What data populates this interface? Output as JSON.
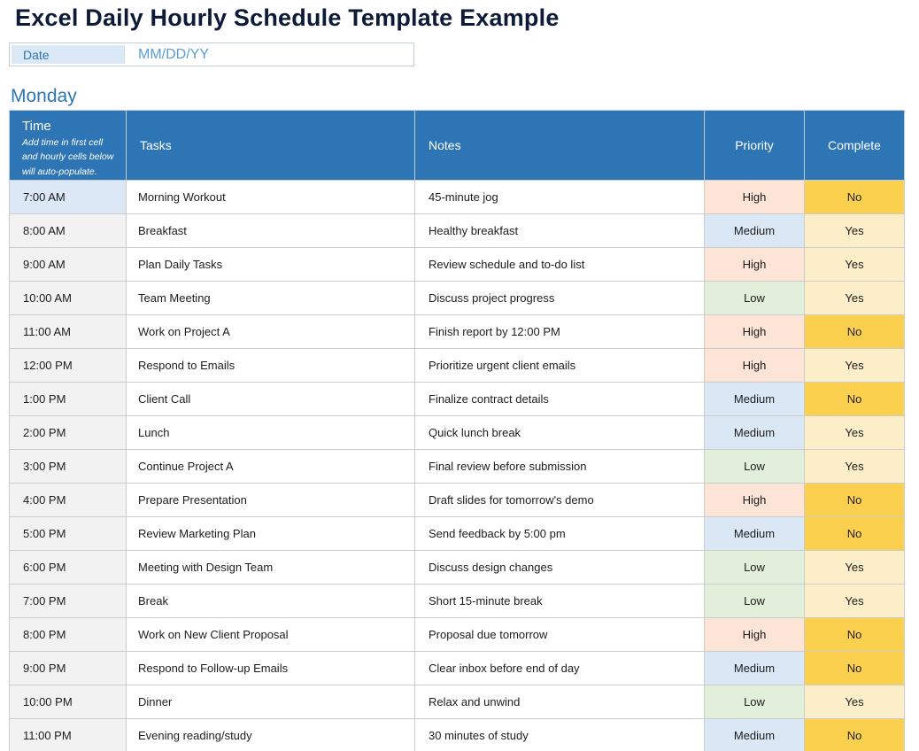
{
  "page": {
    "title": "Excel Daily Hourly Schedule Template Example"
  },
  "date_field": {
    "label": "Date",
    "placeholder": "MM/DD/YY"
  },
  "day_heading": "Monday",
  "table": {
    "headers": {
      "time": "Time",
      "time_note": "Add time in first cell and hourly cells below will auto-populate.",
      "tasks": "Tasks",
      "notes": "Notes",
      "priority": "Priority",
      "complete": "Complete"
    },
    "rows": [
      {
        "time": "7:00 AM",
        "task": "Morning Workout",
        "note": "45-minute jog",
        "priority": "High",
        "complete": "No"
      },
      {
        "time": "8:00 AM",
        "task": "Breakfast",
        "note": "Healthy breakfast",
        "priority": "Medium",
        "complete": "Yes"
      },
      {
        "time": "9:00 AM",
        "task": "Plan Daily Tasks",
        "note": "Review schedule and to-do list",
        "priority": "High",
        "complete": "Yes"
      },
      {
        "time": "10:00 AM",
        "task": "Team Meeting",
        "note": "Discuss project progress",
        "priority": "Low",
        "complete": "Yes"
      },
      {
        "time": "11:00 AM",
        "task": "Work on Project A",
        "note": "Finish report by 12:00 PM",
        "priority": "High",
        "complete": "No"
      },
      {
        "time": "12:00 PM",
        "task": "Respond to Emails",
        "note": "Prioritize urgent client emails",
        "priority": "High",
        "complete": "Yes"
      },
      {
        "time": "1:00 PM",
        "task": "Client Call",
        "note": "Finalize contract details",
        "priority": "Medium",
        "complete": "No"
      },
      {
        "time": "2:00 PM",
        "task": "Lunch",
        "note": "Quick lunch break",
        "priority": "Medium",
        "complete": "Yes"
      },
      {
        "time": "3:00 PM",
        "task": "Continue Project A",
        "note": "Final review before submission",
        "priority": "Low",
        "complete": "Yes"
      },
      {
        "time": "4:00 PM",
        "task": "Prepare Presentation",
        "note": "Draft slides for tomorrow's demo",
        "priority": "High",
        "complete": "No"
      },
      {
        "time": "5:00 PM",
        "task": "Review Marketing Plan",
        "note": "Send feedback by 5:00 pm",
        "priority": "Medium",
        "complete": "No"
      },
      {
        "time": "6:00 PM",
        "task": "Meeting with Design Team",
        "note": "Discuss design changes",
        "priority": "Low",
        "complete": "Yes"
      },
      {
        "time": "7:00 PM",
        "task": "Break",
        "note": "Short 15-minute break",
        "priority": "Low",
        "complete": "Yes"
      },
      {
        "time": "8:00 PM",
        "task": "Work on New Client Proposal",
        "note": "Proposal due tomorrow",
        "priority": "High",
        "complete": "No"
      },
      {
        "time": "9:00 PM",
        "task": "Respond to Follow-up Emails",
        "note": "Clear inbox before end of day",
        "priority": "Medium",
        "complete": "No"
      },
      {
        "time": "10:00 PM",
        "task": "Dinner",
        "note": "Relax and unwind",
        "priority": "Low",
        "complete": "Yes"
      },
      {
        "time": "11:00 PM",
        "task": "Evening reading/study",
        "note": "30 minutes of study",
        "priority": "Medium",
        "complete": "No"
      }
    ]
  },
  "colors": {
    "title_text": "#0D1B38",
    "accent_blue": "#2E75B5",
    "header_bg": "#2E75B5",
    "placeholder_blue": "#5B9BD5",
    "date_label_bg": "#DBE9F6",
    "time_first_cell_bg": "#DCE8F5",
    "time_cell_bg": "#F2F2F2",
    "priority": {
      "High": "#FCE4D6",
      "Medium": "#DAE7F5",
      "Low": "#E2EFDB"
    },
    "complete": {
      "No": "#FBD04F",
      "Yes": "#FCEEC8"
    }
  }
}
